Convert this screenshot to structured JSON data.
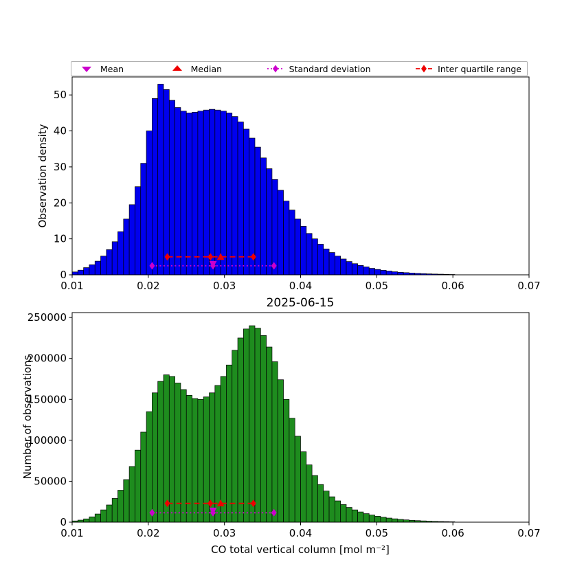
{
  "figure": {
    "title": "2025-06-15",
    "xlabel": "CO total vertical column [mol m⁻²]",
    "background": "#ffffff"
  },
  "legend": {
    "items": [
      {
        "label": "Mean",
        "marker": "triangle-down-icon",
        "color": "#cc00cc",
        "line": "none"
      },
      {
        "label": "Median",
        "marker": "triangle-up-icon",
        "color": "#ee0000",
        "line": "none"
      },
      {
        "label": "Standard deviation",
        "marker": "diamond-icon",
        "color": "#cc00cc",
        "line": "dotted"
      },
      {
        "label": "Inter quartile range",
        "marker": "diamond-icon",
        "color": "#ee0000",
        "line": "dashed"
      }
    ]
  },
  "chart_data": [
    {
      "type": "bar",
      "name": "observation-density-histogram",
      "ylabel": "Observation density",
      "bar_color": "#0000ee",
      "edge_color": "#000000",
      "bin_start": 0.01,
      "bin_width": 0.00075,
      "xlim": [
        0.01,
        0.07
      ],
      "ylim": [
        0,
        55
      ],
      "xticks": [
        0.01,
        0.02,
        0.03,
        0.04,
        0.05,
        0.06,
        0.07
      ],
      "yticks": [
        0,
        10,
        20,
        30,
        40,
        50
      ],
      "values": [
        0.8,
        1.3,
        2,
        2.8,
        3.8,
        5.2,
        7,
        9.2,
        12,
        15.5,
        19.5,
        24.5,
        31,
        40,
        49,
        53,
        51.5,
        48.5,
        46.5,
        45.5,
        45,
        45.2,
        45.5,
        45.8,
        46,
        45.8,
        45.5,
        45,
        44,
        42.5,
        40.5,
        38,
        35.5,
        32.5,
        29.5,
        26.5,
        23.5,
        20.5,
        18,
        15.5,
        13.5,
        11.5,
        10,
        8.5,
        7.2,
        6.2,
        5.2,
        4.4,
        3.7,
        3.1,
        2.6,
        2.2,
        1.8,
        1.5,
        1.25,
        1.05,
        0.85,
        0.7,
        0.6,
        0.5,
        0.4,
        0.33,
        0.27,
        0.22,
        0.18,
        0.14,
        0.1
      ],
      "stats": {
        "mean": 0.0285,
        "median": 0.0295,
        "std_low": 0.0205,
        "std_high": 0.0365,
        "q1": 0.0225,
        "q3": 0.0338,
        "std_line_y": 2.5,
        "iqr_line_y": 5.0,
        "mean_y": 3.0,
        "median_y": 5.0
      }
    },
    {
      "type": "bar",
      "name": "number-of-observations-histogram",
      "ylabel": "Number of observations",
      "bar_color": "#1e8c1e",
      "edge_color": "#000000",
      "bin_start": 0.01,
      "bin_width": 0.00075,
      "xlim": [
        0.01,
        0.07
      ],
      "ylim": [
        0,
        256000
      ],
      "xticks": [
        0.01,
        0.02,
        0.03,
        0.04,
        0.05,
        0.06,
        0.07
      ],
      "yticks": [
        0,
        50000,
        100000,
        150000,
        200000,
        250000
      ],
      "values": [
        1500,
        2500,
        4000,
        6500,
        10000,
        15000,
        21000,
        29000,
        39000,
        52000,
        68000,
        88000,
        110000,
        135000,
        158000,
        172000,
        180000,
        178000,
        170000,
        162000,
        155000,
        151000,
        150000,
        153000,
        158000,
        167000,
        178000,
        192000,
        210000,
        225000,
        236000,
        240000,
        237000,
        228000,
        214000,
        196000,
        174000,
        150000,
        127000,
        105000,
        86000,
        70000,
        57000,
        46000,
        38000,
        31000,
        26000,
        21500,
        18000,
        15000,
        12500,
        10400,
        8700,
        7200,
        6000,
        5000,
        4100,
        3400,
        2800,
        2300,
        1900,
        1550,
        1250,
        1000,
        800,
        650,
        500
      ],
      "stats": {
        "mean": 0.0285,
        "median": 0.0295,
        "std_low": 0.0205,
        "std_high": 0.0365,
        "q1": 0.0225,
        "q3": 0.0338,
        "std_line_y": 11500,
        "iqr_line_y": 23000,
        "mean_y": 14000,
        "median_y": 23000
      }
    }
  ]
}
